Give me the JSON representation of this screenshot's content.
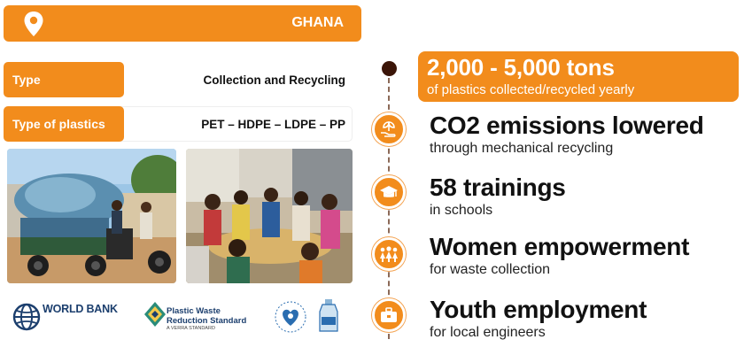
{
  "header": {
    "country": "GHANA"
  },
  "details": {
    "type_label": "Type",
    "type_value": "Collection and Recycling",
    "plastics_label": "Type of plastics",
    "plastics_value": "PET – HDPE – LDPE – PP"
  },
  "logos": {
    "world_bank": "WORLD BANK",
    "pwrs_line1": "Plastic Waste",
    "pwrs_line2": "Reduction Standard",
    "pwrs_line3": "A VERRA STANDARD"
  },
  "highlight": {
    "value": "2,000 - 5,000 tons",
    "caption": "of plastics collected/recycled yearly"
  },
  "impacts": [
    {
      "title": "CO2 emissions lowered",
      "subtitle": "through mechanical recycling",
      "icon": "hand-plant-icon"
    },
    {
      "title": "58 trainings",
      "subtitle": "in schools",
      "icon": "graduation-cap-icon"
    },
    {
      "title": "Women empowerment",
      "subtitle": "for waste collection",
      "icon": "women-group-icon"
    },
    {
      "title": "Youth employment",
      "subtitle": "for local engineers",
      "icon": "briefcase-icon"
    }
  ],
  "colors": {
    "accent": "#f28c1c",
    "dot": "#3b1508",
    "text": "#111111"
  }
}
